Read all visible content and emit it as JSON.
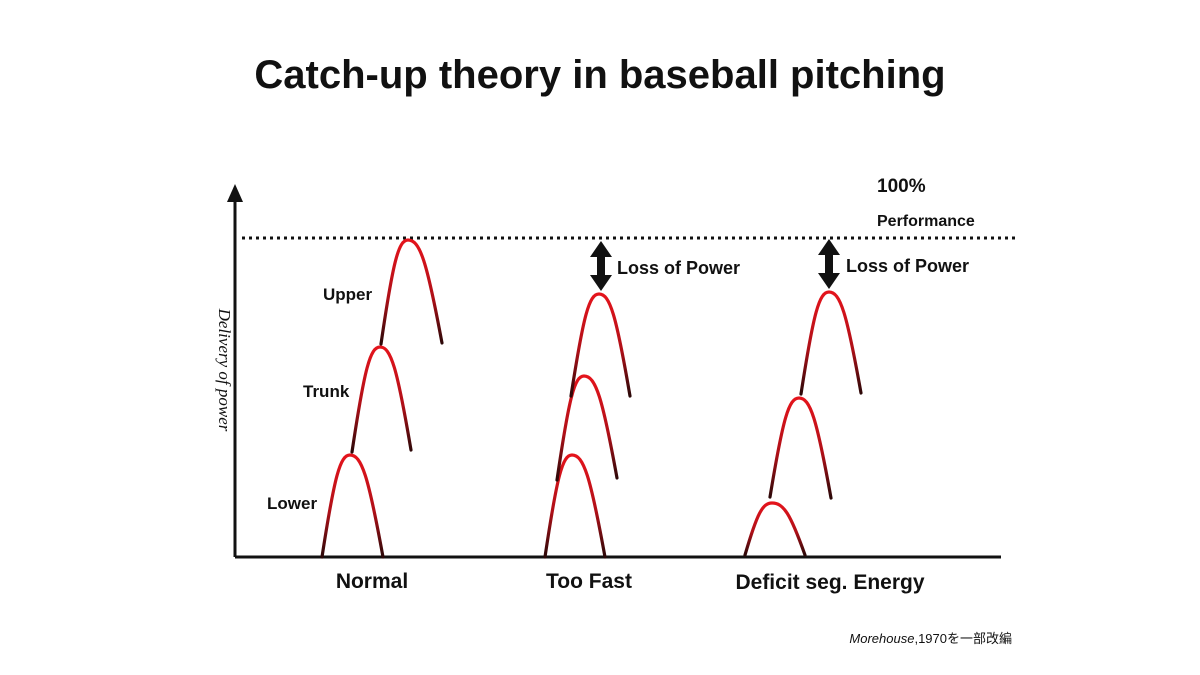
{
  "title": "Catch-up theory in baseball pitching",
  "reference_line": {
    "value_label": "100%",
    "label": "Performance"
  },
  "y_axis_label": "Delivery of power",
  "segments": [
    "Upper",
    "Trunk",
    "Lower"
  ],
  "groups": [
    "Normal",
    "Too Fast",
    "Deficit seg. Energy"
  ],
  "annotations": [
    "Loss of Power",
    "Loss of Power"
  ],
  "citation": {
    "author": "Morehouse",
    "note": ",1970を一部改編"
  }
}
